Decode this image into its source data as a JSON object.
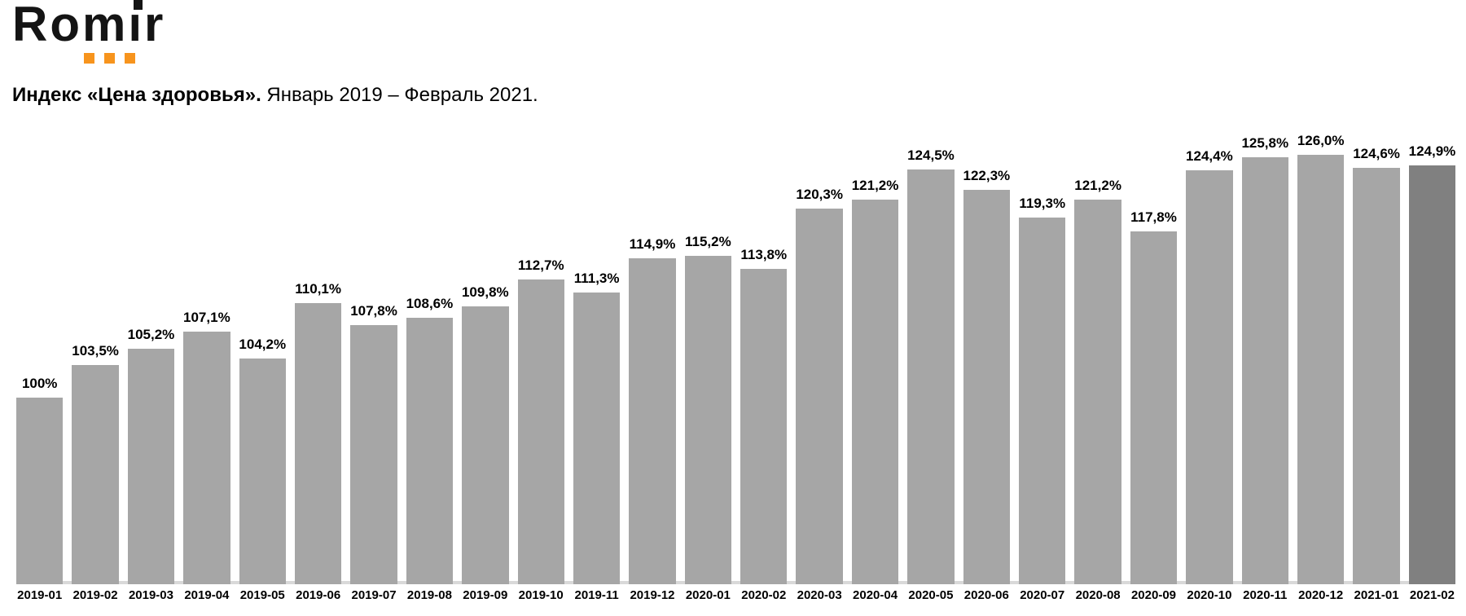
{
  "logo": {
    "text": "Romir",
    "word_start": "Rom",
    "word_i": "ı",
    "word_end": "r",
    "text_color": "#141414",
    "accent_color": "#F7941D"
  },
  "title": {
    "bold": "Индекс «Цена здоровья».",
    "period": "Январь 2019 – Февраль 2021."
  },
  "chart_data": {
    "type": "bar",
    "title": "Индекс «Цена здоровья». Январь 2019 – Февраль 2021.",
    "categories": [
      "2019-01",
      "2019-02",
      "2019-03",
      "2019-04",
      "2019-05",
      "2019-06",
      "2019-07",
      "2019-08",
      "2019-09",
      "2019-10",
      "2019-11",
      "2019-12",
      "2020-01",
      "2020-02",
      "2020-03",
      "2020-04",
      "2020-05",
      "2020-06",
      "2020-07",
      "2020-08",
      "2020-09",
      "2020-10",
      "2020-11",
      "2020-12",
      "2021-01",
      "2021-02"
    ],
    "values": [
      100,
      103.5,
      105.2,
      107.1,
      104.2,
      110.1,
      107.8,
      108.6,
      109.8,
      112.7,
      111.3,
      114.9,
      115.2,
      113.8,
      120.3,
      121.2,
      124.5,
      122.3,
      119.3,
      121.2,
      117.8,
      124.4,
      125.8,
      126.0,
      124.6,
      124.9
    ],
    "labels": [
      "100%",
      "103,5%",
      "105,2%",
      "107,1%",
      "104,2%",
      "110,1%",
      "107,8%",
      "108,6%",
      "109,8%",
      "112,7%",
      "111,3%",
      "114,9%",
      "115,2%",
      "113,8%",
      "120,3%",
      "121,2%",
      "124,5%",
      "122,3%",
      "119,3%",
      "121,2%",
      "117,8%",
      "124,4%",
      "125,8%",
      "126,0%",
      "124,6%",
      "124,9%"
    ],
    "xlabel": "",
    "ylabel": "",
    "ylim": [
      80,
      130.4
    ],
    "grid": false,
    "legend": false,
    "bar_color": "#A6A6A6",
    "highlight_color": "#808080",
    "highlight_index": 25,
    "baseline_color": "#D9D9D9"
  }
}
